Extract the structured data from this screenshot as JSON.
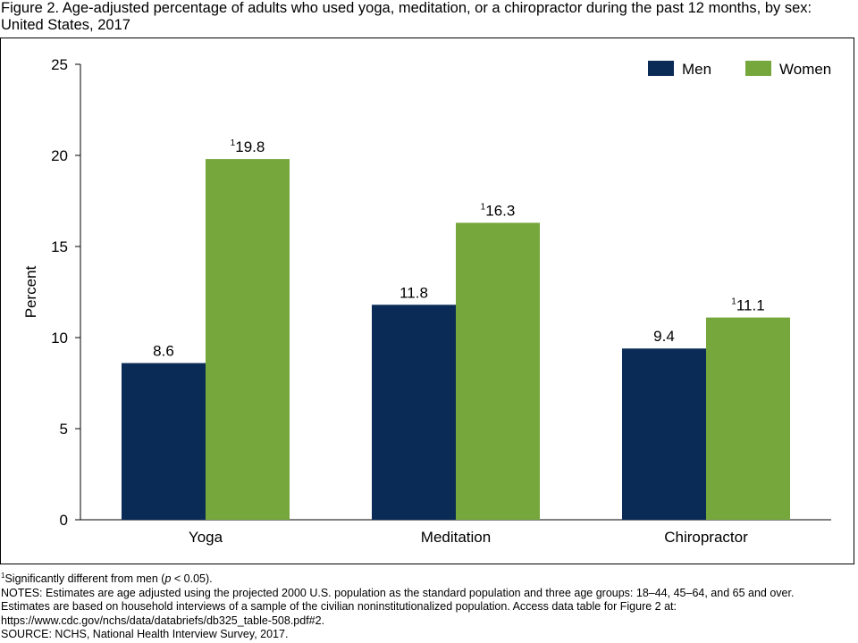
{
  "title": "Figure 2. Age-adjusted percentage of adults who used yoga, meditation, or a chiropractor during the past 12 months, by sex: United States, 2017",
  "colors": {
    "men": "#0b2b57",
    "women": "#76a73c",
    "axis": "#000000"
  },
  "chart_data": {
    "type": "bar",
    "title": "",
    "xlabel": "",
    "ylabel": "Percent",
    "ylim": [
      0,
      25
    ],
    "yticks": [
      "0",
      "5",
      "10",
      "15",
      "20",
      "25"
    ],
    "grid": false,
    "legend_position": "top-right",
    "categories": [
      "Yoga",
      "Meditation",
      "Chiropractor"
    ],
    "series": [
      {
        "name": "Men",
        "values": [
          8.6,
          11.8,
          9.4
        ],
        "labels": [
          "8.6",
          "11.8",
          "9.4"
        ],
        "marks": [
          "",
          "",
          ""
        ]
      },
      {
        "name": "Women",
        "values": [
          19.8,
          16.3,
          11.1
        ],
        "labels": [
          "19.8",
          "16.3",
          "11.1"
        ],
        "marks": [
          "1",
          "1",
          "1"
        ]
      }
    ]
  },
  "footnotes": {
    "sig_mark": "1",
    "sig_pre": "Significantly different from men (",
    "sig_p": "p",
    "sig_post": " < 0.05).",
    "notes_1": "NOTES: Estimates are age adjusted using the projected 2000 U.S. population as the standard population and three age groups: 18–44, 45–64, and 65 and over.",
    "notes_2": "Estimates are based on household interviews of a sample of the civilian noninstitutionalized population. Access data table for Figure 2 at:",
    "notes_3": "https://www.cdc.gov/nchs/data/databriefs/db325_table-508.pdf#2.",
    "source": "SOURCE: NCHS, National Health Interview Survey, 2017."
  }
}
